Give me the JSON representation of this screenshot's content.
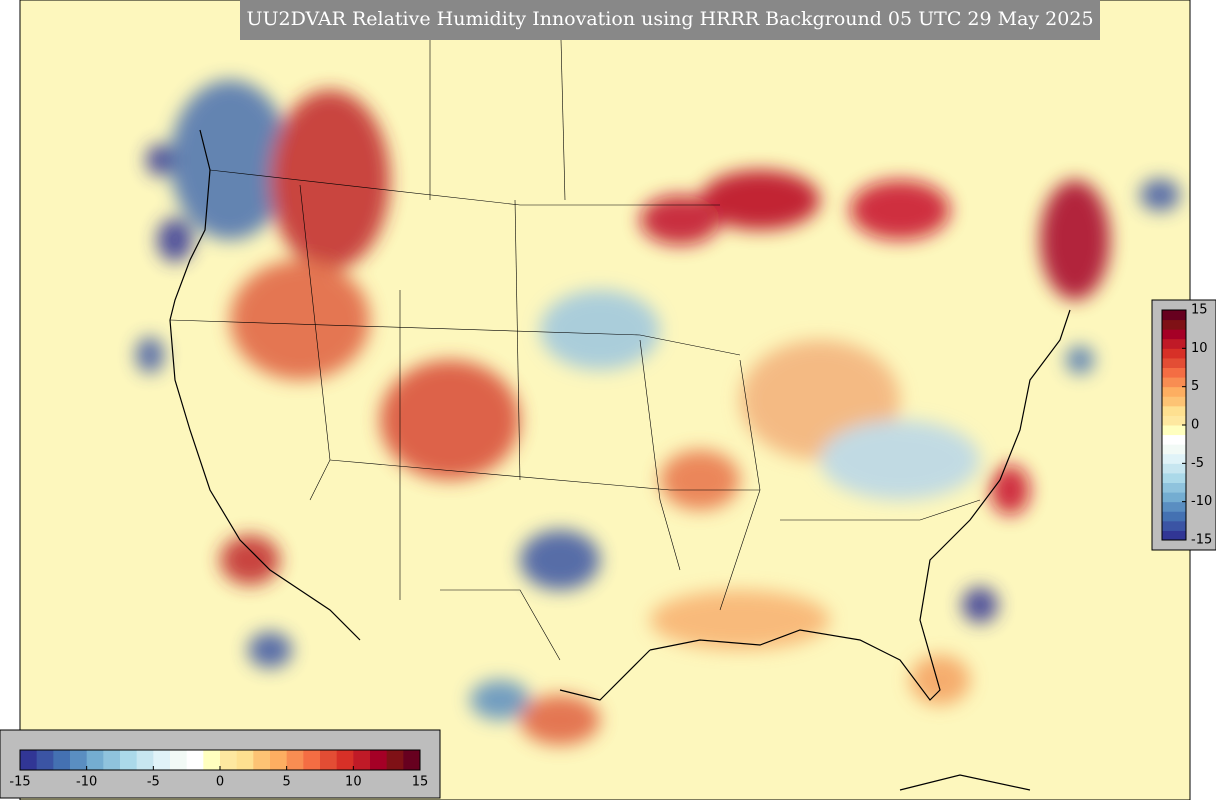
{
  "title": "UU2DVAR Relative Humidity Innovation using HRRR Background 05 UTC 29 May 2025",
  "colorbar_right": {
    "range": [
      -15,
      15
    ],
    "ticks": [
      -15,
      -10,
      -5,
      0,
      5,
      10,
      15
    ]
  },
  "colorbar_bottom": {
    "range": [
      -15,
      15
    ],
    "ticks": [
      -15,
      -10,
      -5,
      0,
      5,
      10,
      15
    ]
  },
  "colors": [
    "#313695",
    "#3b54a4",
    "#4471b2",
    "#5a8ec1",
    "#74add1",
    "#8fc3dd",
    "#abd9e9",
    "#c7e6f0",
    "#e0f3f8",
    "#f2faf6",
    "#ffffff",
    "#ffffbf",
    "#fee8a0",
    "#fee090",
    "#fdc374",
    "#fdae61",
    "#f88d52",
    "#f46d43",
    "#e34d34",
    "#d73027",
    "#c01a27",
    "#a50026",
    "#7f1116",
    "#67001f"
  ]
}
